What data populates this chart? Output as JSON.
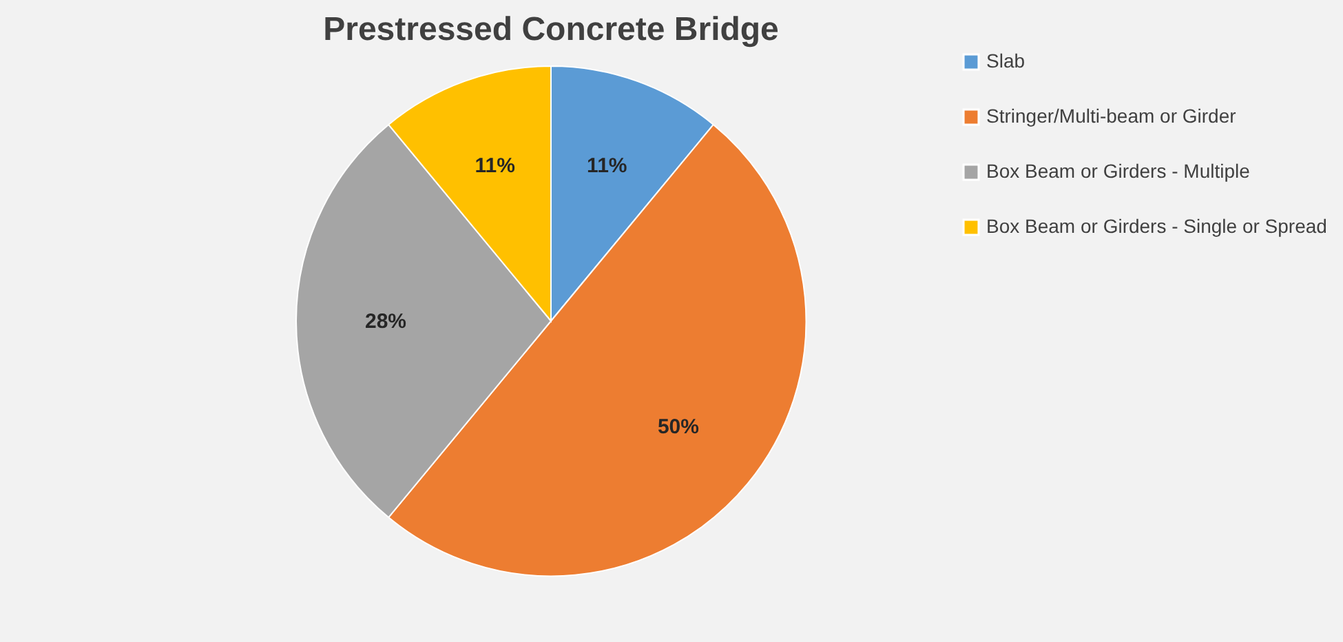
{
  "chart_data": {
    "type": "pie",
    "title": "Prestressed Concrete Bridge",
    "categories": [
      "Slab",
      "Stringer/Multi-beam or Girder",
      "Box Beam or Girders - Multiple",
      "Box Beam or Girders - Single or Spread"
    ],
    "values": [
      11,
      50,
      28,
      11
    ],
    "colors": [
      "#5b9bd5",
      "#ed7d31",
      "#a5a5a5",
      "#ffc000"
    ],
    "value_labels": [
      "11%",
      "50%",
      "28%",
      "11%"
    ],
    "legend": "right"
  }
}
